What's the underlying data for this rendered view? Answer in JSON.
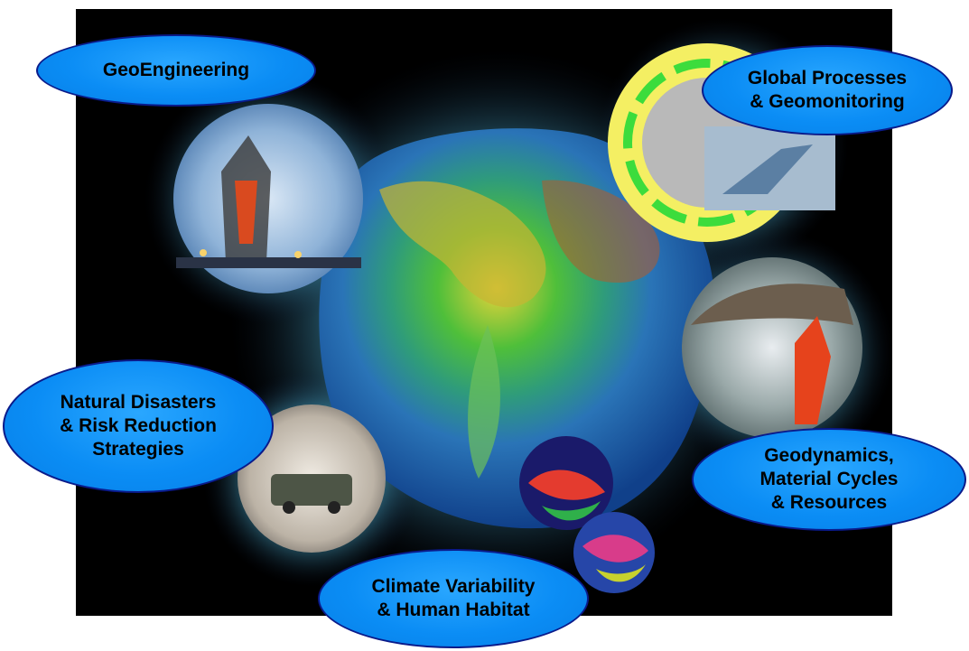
{
  "labels": {
    "geoengineering": "GeoEngineering",
    "global_processes": "Global Processes\n& Geomonitoring",
    "natural_disasters": "Natural Disasters\n& Risk Reduction\nStrategies",
    "geodynamics": "Geodynamics,\nMaterial Cycles\n& Resources",
    "climate": "Climate Variability\n& Human Habitat"
  },
  "colors": {
    "background": "#000000",
    "label_fill": "#0b8df5",
    "label_border": "#0a1a8a",
    "glow": "#7fe7ff"
  }
}
